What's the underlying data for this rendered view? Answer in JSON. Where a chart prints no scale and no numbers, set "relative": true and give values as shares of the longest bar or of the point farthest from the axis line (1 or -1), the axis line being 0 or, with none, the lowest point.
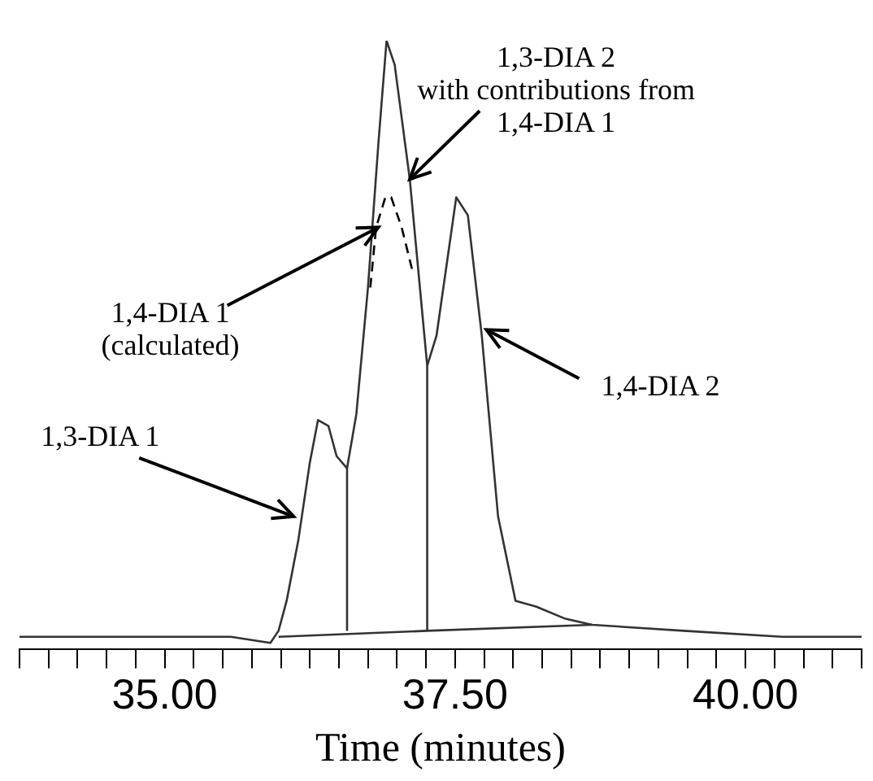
{
  "chart_data": {
    "type": "line",
    "relative": true,
    "xlabel": "Time (minutes)",
    "xlim": [
      33.75,
      41.0
    ],
    "xticks": [
      {
        "value": 33.75,
        "label": null
      },
      {
        "value": 34,
        "label": null
      },
      {
        "value": 34.25,
        "label": null
      },
      {
        "value": 34.5,
        "label": null
      },
      {
        "value": 34.75,
        "label": null
      },
      {
        "value": 35,
        "label": "35.00"
      },
      {
        "value": 35.25,
        "label": null
      },
      {
        "value": 35.5,
        "label": null
      },
      {
        "value": 35.75,
        "label": null
      },
      {
        "value": 36,
        "label": null
      },
      {
        "value": 36.25,
        "label": null
      },
      {
        "value": 36.5,
        "label": null
      },
      {
        "value": 36.75,
        "label": null
      },
      {
        "value": 37,
        "label": null
      },
      {
        "value": 37.25,
        "label": null
      },
      {
        "value": 37.5,
        "label": "37.50"
      },
      {
        "value": 37.75,
        "label": null
      },
      {
        "value": 38,
        "label": null
      },
      {
        "value": 38.25,
        "label": null
      },
      {
        "value": 38.5,
        "label": null
      },
      {
        "value": 38.75,
        "label": null
      },
      {
        "value": 39,
        "label": null
      },
      {
        "value": 39.25,
        "label": null
      },
      {
        "value": 39.5,
        "label": null
      },
      {
        "value": 39.75,
        "label": null
      },
      {
        "value": 40,
        "label": "40.00"
      },
      {
        "value": 40.25,
        "label": null
      },
      {
        "value": 40.5,
        "label": null
      },
      {
        "value": 40.75,
        "label": null
      },
      {
        "value": 41,
        "label": null
      }
    ],
    "tick_labels": "x",
    "grid": false,
    "legend": false,
    "marker": "none",
    "series": [
      {
        "color": "#333333",
        "x": [
          33.75,
          35.0,
          35.57,
          35.91,
          35.98,
          36.05,
          36.15,
          36.25,
          36.32,
          36.41,
          36.48,
          36.57,
          36.65,
          36.75,
          36.84,
          36.91,
          36.98,
          37.11,
          37.26,
          37.34,
          37.51,
          37.61,
          37.73,
          37.87,
          38.02,
          38.2,
          38.45,
          38.68,
          39.47,
          40.32,
          41.0
        ],
        "values": [
          0.01,
          0.01,
          0.01,
          0,
          0.02,
          0.07,
          0.17,
          0.3,
          0.37,
          0.36,
          0.31,
          0.29,
          0.38,
          0.59,
          0.83,
          1.0,
          0.96,
          0.77,
          0.46,
          0.51,
          0.74,
          0.71,
          0.51,
          0.21,
          0.07,
          0.06,
          0.04,
          0.03,
          0.02,
          0.01,
          0.01
        ]
      },
      {
        "color": "#333333",
        "x": [
          35.98,
          37.26,
          38.68
        ],
        "values": [
          0.01,
          0.02,
          0.03
        ]
      },
      {
        "color": "#333333",
        "x": [
          36.57,
          36.57
        ],
        "values": [
          0.02,
          0.29
        ]
      },
      {
        "color": "#333333",
        "x": [
          37.26,
          37.26
        ],
        "values": [
          0.02,
          0.46
        ]
      },
      {
        "color": "#000000",
        "line_style": "dashed",
        "x": [
          36.77,
          36.82,
          36.9,
          36.95,
          37.04,
          37.13
        ],
        "values": [
          0.59,
          0.69,
          0.74,
          0.74,
          0.69,
          0.62
        ]
      }
    ],
    "annotations": [
      {
        "text": "1,3-DIA 1",
        "x": 36.11,
        "y": 0.21
      },
      {
        "text": "1,4-DIA 1\n(calculated)",
        "x": 36.84,
        "y": 0.69
      },
      {
        "text": "1,3-DIA 2\nwith contributions from\n1,4-DIA 1",
        "x": 37.11,
        "y": 0.77
      },
      {
        "text": "1,4-DIA 2",
        "x": 37.77,
        "y": 0.52
      }
    ]
  }
}
